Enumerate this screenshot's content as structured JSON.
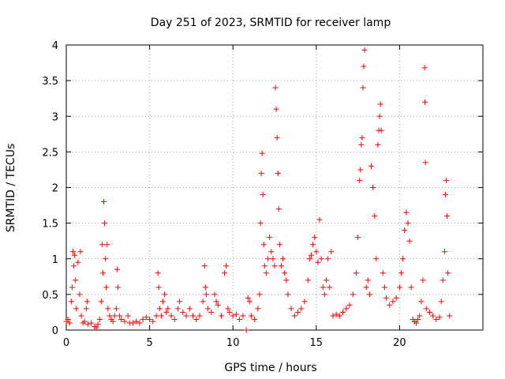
{
  "chart_data": {
    "type": "scatter",
    "title": "Day 251 of 2023, SRMTID for receiver lamp",
    "xlabel": "GPS time / hours",
    "ylabel": "SRMTID / TECUs",
    "xlim": [
      0,
      25
    ],
    "ylim": [
      0,
      4
    ],
    "x_ticks": [
      0,
      5,
      10,
      15,
      20
    ],
    "x_tick_labels": [
      "0",
      "5",
      "10",
      "15",
      "20"
    ],
    "y_ticks": [
      0,
      0.5,
      1,
      1.5,
      2,
      2.5,
      3,
      3.5,
      4
    ],
    "y_tick_labels": [
      "0",
      "0.5",
      "1",
      "1.5",
      "2",
      "2.5",
      "3",
      "3.5",
      "4"
    ],
    "grid": true,
    "marker": "+",
    "color": "#ff0000",
    "series": [
      {
        "name": "SRMTID",
        "points": [
          [
            0.0,
            0.12
          ],
          [
            0.1,
            0.15
          ],
          [
            0.2,
            0.1
          ],
          [
            0.3,
            0.4
          ],
          [
            0.35,
            0.6
          ],
          [
            0.4,
            1.1
          ],
          [
            0.45,
            0.9
          ],
          [
            0.5,
            1.05
          ],
          [
            0.55,
            0.7
          ],
          [
            0.6,
            0.3
          ],
          [
            0.7,
            0.95
          ],
          [
            0.8,
            0.5
          ],
          [
            0.85,
            1.1
          ],
          [
            0.9,
            0.2
          ],
          [
            1.0,
            0.1
          ],
          [
            1.1,
            0.12
          ],
          [
            1.2,
            0.3
          ],
          [
            1.25,
            0.4
          ],
          [
            1.3,
            0.08
          ],
          [
            1.5,
            0.1
          ],
          [
            1.7,
            0.05
          ],
          [
            1.8,
            0.03
          ],
          [
            1.9,
            0.08
          ],
          [
            2.0,
            0.15
          ],
          [
            2.1,
            0.4
          ],
          [
            2.15,
            1.2
          ],
          [
            2.2,
            0.8
          ],
          [
            2.25,
            1.8
          ],
          [
            2.3,
            1.5
          ],
          [
            2.35,
            1.0
          ],
          [
            2.4,
            0.6
          ],
          [
            2.45,
            1.2
          ],
          [
            2.5,
            0.3
          ],
          [
            2.6,
            0.2
          ],
          [
            2.7,
            0.15
          ],
          [
            2.8,
            0.12
          ],
          [
            2.9,
            0.2
          ],
          [
            3.0,
            0.3
          ],
          [
            3.05,
            0.85
          ],
          [
            3.1,
            0.6
          ],
          [
            3.2,
            0.2
          ],
          [
            3.3,
            0.15
          ],
          [
            3.5,
            0.12
          ],
          [
            3.7,
            0.2
          ],
          [
            3.8,
            0.1
          ],
          [
            4.0,
            0.1
          ],
          [
            4.2,
            0.12
          ],
          [
            4.4,
            0.1
          ],
          [
            4.6,
            0.15
          ],
          [
            4.8,
            0.18
          ],
          [
            5.0,
            0.15
          ],
          [
            5.2,
            0.12
          ],
          [
            5.4,
            0.2
          ],
          [
            5.5,
            0.8
          ],
          [
            5.55,
            0.6
          ],
          [
            5.6,
            0.3
          ],
          [
            5.7,
            0.2
          ],
          [
            5.8,
            0.4
          ],
          [
            5.9,
            0.5
          ],
          [
            6.0,
            0.25
          ],
          [
            6.1,
            0.3
          ],
          [
            6.3,
            0.2
          ],
          [
            6.5,
            0.15
          ],
          [
            6.7,
            0.3
          ],
          [
            6.8,
            0.4
          ],
          [
            7.0,
            0.25
          ],
          [
            7.2,
            0.2
          ],
          [
            7.4,
            0.3
          ],
          [
            7.6,
            0.2
          ],
          [
            7.8,
            0.15
          ],
          [
            8.0,
            0.2
          ],
          [
            8.2,
            0.4
          ],
          [
            8.3,
            0.9
          ],
          [
            8.35,
            0.6
          ],
          [
            8.4,
            0.5
          ],
          [
            8.5,
            0.3
          ],
          [
            8.7,
            0.25
          ],
          [
            8.9,
            0.5
          ],
          [
            9.0,
            0.4
          ],
          [
            9.1,
            0.35
          ],
          [
            9.3,
            0.2
          ],
          [
            9.5,
            0.8
          ],
          [
            9.6,
            0.9
          ],
          [
            9.7,
            0.3
          ],
          [
            9.8,
            0.25
          ],
          [
            10.0,
            0.2
          ],
          [
            10.2,
            0.22
          ],
          [
            10.4,
            0.15
          ],
          [
            10.6,
            0.2
          ],
          [
            10.8,
            0.0
          ],
          [
            10.9,
            0.45
          ],
          [
            11.0,
            0.4
          ],
          [
            11.1,
            0.2
          ],
          [
            11.3,
            0.15
          ],
          [
            11.5,
            0.3
          ],
          [
            11.6,
            0.5
          ],
          [
            11.65,
            1.5
          ],
          [
            11.7,
            2.2
          ],
          [
            11.75,
            2.48
          ],
          [
            11.8,
            1.9
          ],
          [
            11.85,
            1.2
          ],
          [
            11.9,
            0.9
          ],
          [
            12.0,
            0.8
          ],
          [
            12.1,
            1.0
          ],
          [
            12.2,
            1.3
          ],
          [
            12.3,
            1.1
          ],
          [
            12.4,
            1.0
          ],
          [
            12.5,
            0.9
          ],
          [
            12.55,
            3.4
          ],
          [
            12.6,
            3.1
          ],
          [
            12.65,
            2.7
          ],
          [
            12.7,
            2.2
          ],
          [
            12.75,
            1.7
          ],
          [
            12.8,
            1.2
          ],
          [
            12.9,
            0.9
          ],
          [
            13.0,
            1.0
          ],
          [
            13.1,
            0.8
          ],
          [
            13.2,
            0.7
          ],
          [
            13.3,
            0.5
          ],
          [
            13.5,
            0.3
          ],
          [
            13.7,
            0.2
          ],
          [
            13.9,
            0.25
          ],
          [
            14.1,
            0.3
          ],
          [
            14.3,
            0.4
          ],
          [
            14.5,
            0.7
          ],
          [
            14.6,
            1.0
          ],
          [
            14.7,
            1.05
          ],
          [
            14.8,
            1.2
          ],
          [
            14.9,
            1.3
          ],
          [
            15.0,
            1.1
          ],
          [
            15.1,
            0.95
          ],
          [
            15.2,
            1.55
          ],
          [
            15.3,
            1.0
          ],
          [
            15.4,
            0.6
          ],
          [
            15.5,
            0.5
          ],
          [
            15.6,
            0.7
          ],
          [
            15.7,
            1.0
          ],
          [
            15.8,
            0.6
          ],
          [
            15.9,
            1.1
          ],
          [
            16.0,
            0.2
          ],
          [
            16.2,
            0.22
          ],
          [
            16.4,
            0.2
          ],
          [
            16.6,
            0.25
          ],
          [
            16.8,
            0.3
          ],
          [
            17.0,
            0.35
          ],
          [
            17.2,
            0.5
          ],
          [
            17.4,
            0.8
          ],
          [
            17.5,
            1.3
          ],
          [
            17.6,
            2.1
          ],
          [
            17.65,
            2.25
          ],
          [
            17.7,
            2.6
          ],
          [
            17.75,
            2.7
          ],
          [
            17.8,
            3.4
          ],
          [
            17.85,
            3.7
          ],
          [
            17.9,
            3.93
          ],
          [
            18.0,
            0.6
          ],
          [
            18.1,
            0.7
          ],
          [
            18.2,
            0.5
          ],
          [
            18.3,
            2.3
          ],
          [
            18.4,
            2.0
          ],
          [
            18.5,
            1.6
          ],
          [
            18.6,
            1.0
          ],
          [
            18.7,
            2.6
          ],
          [
            18.75,
            2.8
          ],
          [
            18.8,
            3.0
          ],
          [
            18.85,
            3.17
          ],
          [
            18.9,
            2.8
          ],
          [
            19.0,
            0.8
          ],
          [
            19.1,
            0.6
          ],
          [
            19.2,
            0.45
          ],
          [
            19.4,
            0.35
          ],
          [
            19.6,
            0.4
          ],
          [
            19.8,
            0.45
          ],
          [
            20.0,
            0.6
          ],
          [
            20.1,
            0.8
          ],
          [
            20.2,
            1.0
          ],
          [
            20.3,
            1.4
          ],
          [
            20.4,
            1.65
          ],
          [
            20.5,
            1.5
          ],
          [
            20.6,
            1.25
          ],
          [
            20.7,
            0.6
          ],
          [
            20.8,
            0.15
          ],
          [
            20.9,
            0.12
          ],
          [
            21.0,
            0.1
          ],
          [
            21.1,
            0.15
          ],
          [
            21.2,
            0.2
          ],
          [
            21.3,
            0.4
          ],
          [
            21.4,
            0.7
          ],
          [
            21.5,
            3.68
          ],
          [
            21.52,
            3.2
          ],
          [
            21.55,
            2.35
          ],
          [
            21.6,
            0.3
          ],
          [
            21.8,
            0.25
          ],
          [
            22.0,
            0.2
          ],
          [
            22.2,
            0.15
          ],
          [
            22.4,
            0.18
          ],
          [
            22.5,
            0.4
          ],
          [
            22.6,
            0.7
          ],
          [
            22.7,
            1.1
          ],
          [
            22.75,
            1.9
          ],
          [
            22.8,
            2.1
          ],
          [
            22.85,
            1.6
          ],
          [
            22.9,
            0.8
          ],
          [
            23.0,
            0.2
          ]
        ]
      }
    ]
  }
}
